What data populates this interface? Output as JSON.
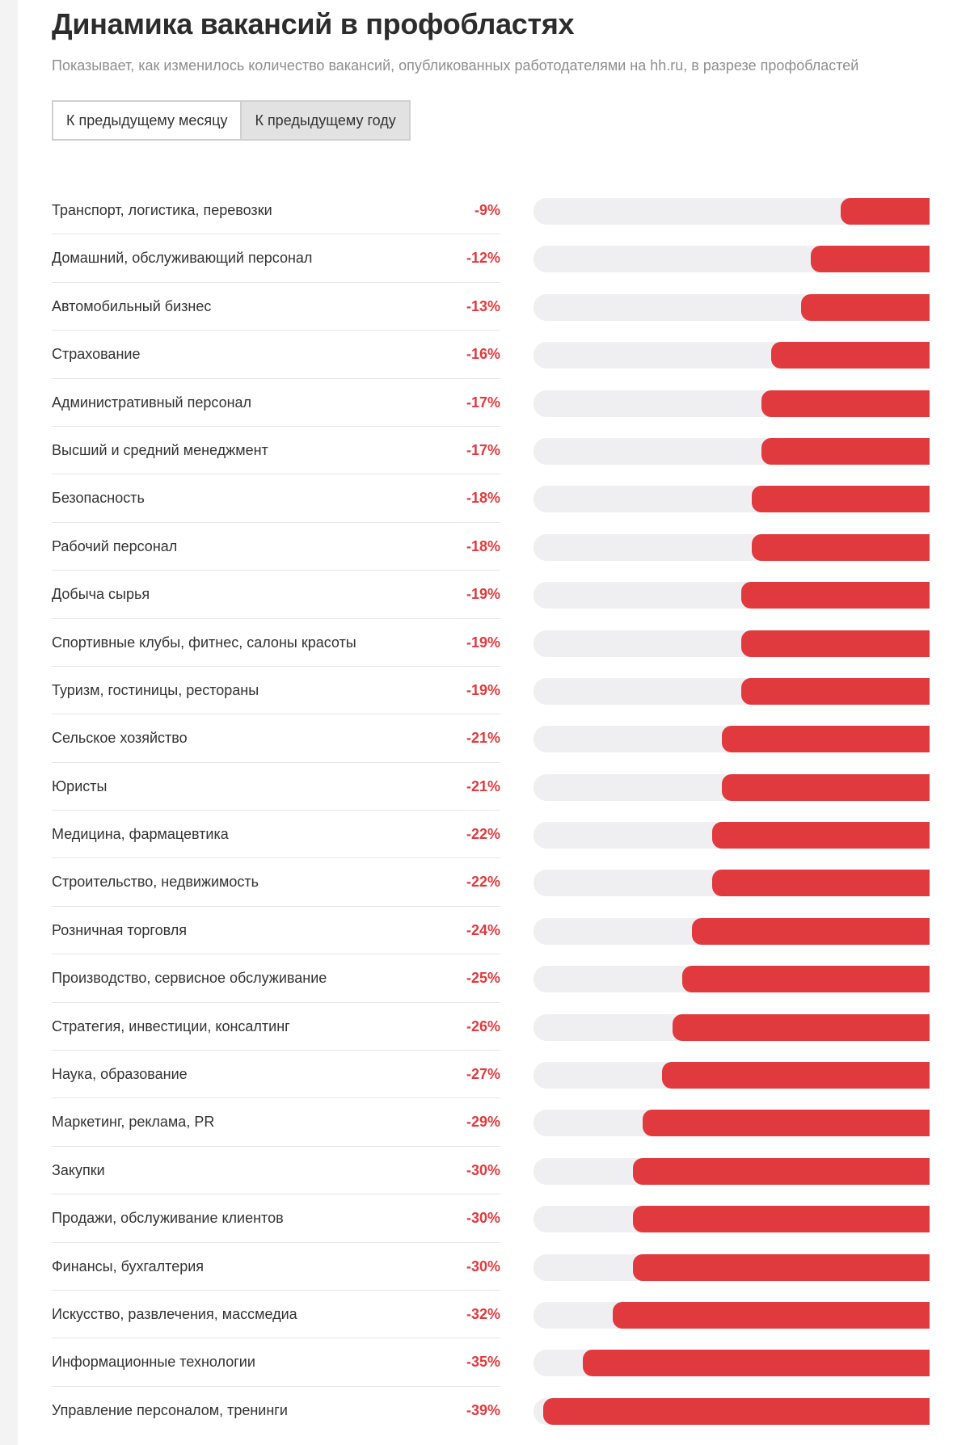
{
  "header": {
    "title": "Динамика вакансий в профобластях",
    "subtitle": "Показывает, как изменилось количество вакансий, опубликованных работодателями на hh.ru, в разрезе профобластей"
  },
  "toggle": {
    "options": [
      "К предыдущему месяцу",
      "К предыдущему году"
    ],
    "selected": "К предыдущему году"
  },
  "colors": {
    "accent": "#e03a3e",
    "track": "#efeff1"
  },
  "chart_data": {
    "type": "bar",
    "orientation": "horizontal",
    "unit": "%",
    "xlim": [
      -40,
      0
    ],
    "grid": false,
    "categories": [
      "Транспорт, логистика, перевозки",
      "Домашний, обслуживающий персонал",
      "Автомобильный бизнес",
      "Страхование",
      "Административный персонал",
      "Высший и средний менеджмент",
      "Безопасность",
      "Рабочий персонал",
      "Добыча сырья",
      "Спортивные клубы, фитнес, салоны красоты",
      "Туризм, гостиницы, рестораны",
      "Сельское хозяйство",
      "Юристы",
      "Медицина, фармацевтика",
      "Строительство, недвижимость",
      "Розничная торговля",
      "Производство, сервисное обслуживание",
      "Стратегия, инвестиции, консалтинг",
      "Наука, образование",
      "Маркетинг, реклама, PR",
      "Закупки",
      "Продажи, обслуживание клиентов",
      "Финансы, бухгалтерия",
      "Искусство, развлечения, массмедиа",
      "Информационные технологии",
      "Управление персоналом, тренинги"
    ],
    "values": [
      -9,
      -12,
      -13,
      -16,
      -17,
      -17,
      -18,
      -18,
      -19,
      -19,
      -19,
      -21,
      -21,
      -22,
      -22,
      -24,
      -25,
      -26,
      -27,
      -29,
      -30,
      -30,
      -30,
      -32,
      -35,
      -39
    ],
    "labels": [
      "-9%",
      "-12%",
      "-13%",
      "-16%",
      "-17%",
      "-17%",
      "-18%",
      "-18%",
      "-19%",
      "-19%",
      "-19%",
      "-21%",
      "-21%",
      "-22%",
      "-22%",
      "-24%",
      "-25%",
      "-26%",
      "-27%",
      "-29%",
      "-30%",
      "-30%",
      "-30%",
      "-32%",
      "-35%",
      "-39%"
    ]
  }
}
